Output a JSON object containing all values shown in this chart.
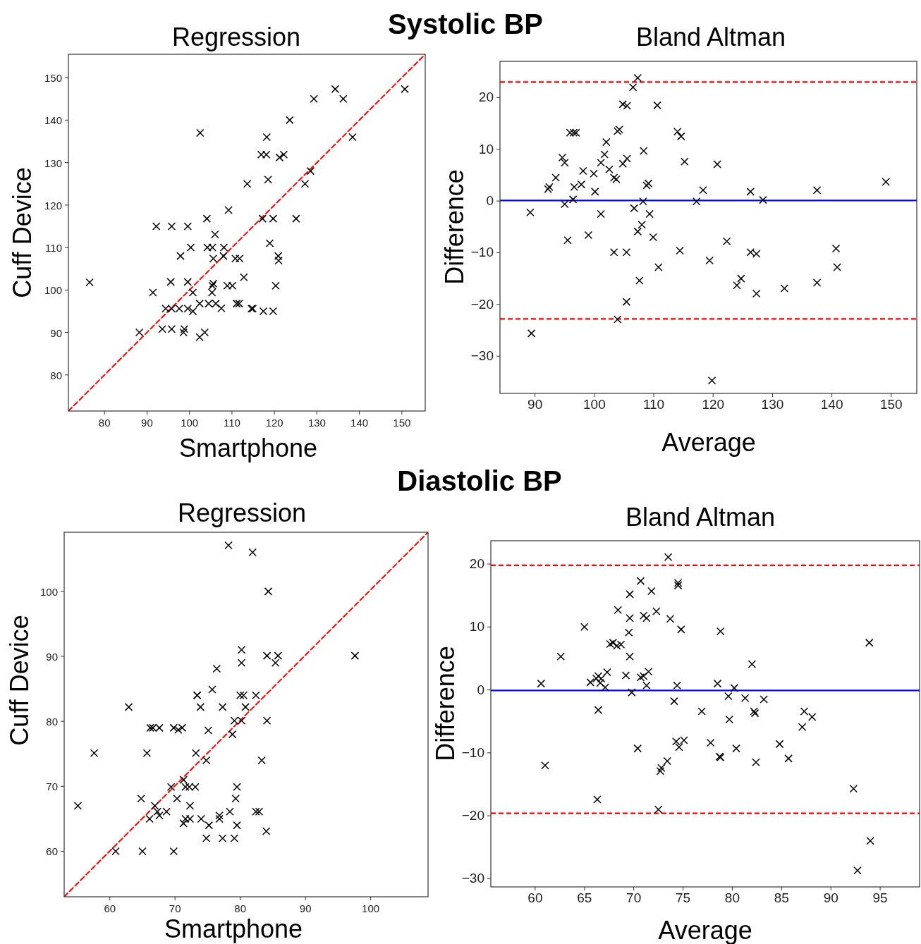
{
  "chart_data": [
    {
      "type": "scatter",
      "title": "Regression",
      "annotations": [
        "Systolic BP"
      ],
      "xlabel": "Smartphone",
      "ylabel": "Cuff Device",
      "grid": false,
      "xlim": [
        71.5,
        155.5
      ],
      "ylim": [
        71.5,
        155.5
      ],
      "xticks": [
        80,
        90,
        100,
        110,
        120,
        130,
        140,
        150
      ],
      "yticks": [
        80,
        90,
        100,
        110,
        120,
        130,
        140,
        150
      ],
      "series": [
        {
          "type": "line",
          "color": "#ff0000",
          "line_style": "dashed",
          "x": [
            71.5,
            155.5
          ],
          "values": [
            71.5,
            155.5
          ]
        },
        {
          "marker": "cross",
          "color": "#000000",
          "x": [
            76.5,
            88.2,
            91.4,
            92.2,
            95.8,
            99.6,
            95.6,
            99.6,
            94.4,
            95.8,
            97.6,
            99.6,
            100.8,
            93.6,
            95.8,
            98.8,
            98.6,
            102.4,
            103.6,
            100.8,
            100.3,
            97.9,
            102.5,
            104.1,
            104.2,
            105.4,
            108.1,
            106,
            105.6,
            108,
            109.2,
            110.8,
            111.8,
            105.6,
            105.4,
            105.3,
            102.4,
            104.5,
            106.2,
            107.5,
            108.9,
            110.1,
            112.8,
            111.1,
            111.7,
            114.6,
            114.9,
            117.4,
            119.7,
            120.3,
            118.9,
            120.9,
            121,
            113.6,
            117.2,
            119.7,
            125.1,
            116.9,
            118.1,
            118.2,
            118.5,
            121.2,
            122.2,
            123.6,
            127.2,
            128.5,
            129.3,
            134.3,
            136.2,
            138.4,
            150.7
          ],
          "values": [
            101.8,
            90,
            99.4,
            115,
            115,
            115,
            101.9,
            101.9,
            95.6,
            95.6,
            95.6,
            95.6,
            95,
            90.8,
            90.8,
            90.8,
            90,
            88.9,
            90,
            99.4,
            110,
            108,
            137,
            116.8,
            110,
            110,
            110,
            113.1,
            107.4,
            108,
            118.8,
            107.4,
            107.4,
            101.5,
            101,
            99.4,
            96.8,
            96.8,
            96.8,
            95.7,
            101,
            101,
            103,
            96.8,
            96.8,
            95.6,
            95.6,
            95,
            95,
            101,
            111,
            108,
            106.9,
            125,
            116.8,
            116.8,
            116.8,
            131.9,
            131.9,
            136,
            126,
            131.2,
            131.9,
            140,
            125,
            128,
            145,
            147.3,
            145,
            136,
            147.3
          ]
        }
      ]
    },
    {
      "type": "scatter",
      "title": "Bland Altman",
      "xlabel": "Average",
      "ylabel": "Difference",
      "grid": false,
      "xlim": [
        84.1,
        154.3
      ],
      "ylim": [
        -37.2,
        27
      ],
      "xticks": [
        90,
        100,
        110,
        120,
        130,
        140,
        150
      ],
      "yticks": [
        -30,
        -20,
        -10,
        0,
        10,
        20
      ],
      "ref_lines": [
        {
          "axis": "y",
          "value": 23,
          "color": "#ff0000",
          "line_style": "dashed"
        },
        {
          "axis": "y",
          "value": 0.1,
          "color": "#0000ff",
          "line_style": "solid"
        },
        {
          "axis": "y",
          "value": -22.8,
          "color": "#ff0000",
          "line_style": "dashed"
        }
      ],
      "series": [
        {
          "marker": "cross",
          "color": "#000000",
          "x": [
            89.2,
            89.4,
            92.2,
            92.4,
            93.5,
            94.6,
            95.0,
            95.0,
            95.5,
            95.9,
            96.5,
            96.9,
            96.6,
            96.4,
            97.8,
            98.1,
            99.0,
            99.9,
            100.1,
            101.1,
            101.1,
            101.7,
            102.0,
            102.5,
            103.3,
            103.7,
            103.3,
            103.9,
            103.9,
            104.2,
            104.8,
            105.5,
            104.8,
            105.5,
            105.4,
            105.4,
            106.5,
            107.3,
            106.7,
            107.3,
            108.0,
            107.6,
            108.3,
            108.2,
            108.8,
            109.1,
            109.3,
            109.9,
            110.6,
            110.8,
            114.0,
            114.6,
            114.4,
            115.2,
            117.2,
            118.3,
            119.4,
            119.8,
            120.7,
            122.3,
            124.0,
            124.7,
            126.3,
            126.3,
            127.3,
            127.3,
            128.4,
            132.0,
            137.5,
            137.5,
            140.7,
            140.9,
            149.1
          ],
          "values": [
            -2.2,
            -25.6,
            2.3,
            2.7,
            4.5,
            8.4,
            7.4,
            -0.6,
            -7.6,
            13.2,
            13.2,
            13.2,
            2.7,
            0.3,
            3.2,
            5.8,
            -6.6,
            5.3,
            1.8,
            -2.5,
            7.4,
            9.0,
            11.4,
            6.1,
            4.5,
            4.2,
            -9.9,
            -22.9,
            13.5,
            13.8,
            7.2,
            8.2,
            18.7,
            18.4,
            -9.9,
            -19.5,
            22.0,
            23.8,
            -1.4,
            -5.9,
            -4.6,
            -15.4,
            9.7,
            -0.1,
            3.0,
            3.4,
            -2.5,
            -7.0,
            18.5,
            -12.8,
            13.4,
            12.5,
            -9.6,
            7.6,
            -0.1,
            2.1,
            -11.5,
            -34.7,
            7.1,
            -7.8,
            -16.3,
            -15.0,
            1.8,
            -9.9,
            -10.2,
            -17.9,
            0.2,
            -16.9,
            2.1,
            -15.8,
            -9.2,
            -12.8,
            3.7
          ]
        }
      ]
    },
    {
      "type": "scatter",
      "title": "Regression",
      "annotations": [
        "Diastolic BP"
      ],
      "xlabel": "Smartphone",
      "ylabel": "Cuff Device",
      "grid": false,
      "xlim": [
        53,
        108.8
      ],
      "ylim": [
        53,
        109.1
      ],
      "xticks": [
        60,
        70,
        80,
        90,
        100
      ],
      "yticks": [
        60,
        70,
        80,
        90,
        100
      ],
      "series": [
        {
          "type": "line",
          "color": "#ff0000",
          "line_style": "dashed",
          "x": [
            53,
            108.8
          ],
          "values": [
            53,
            109.1
          ]
        },
        {
          "marker": "cross",
          "color": "#000000",
          "x": [
            55.1,
            57.6,
            60.9,
            62.9,
            64.8,
            65.0,
            65.7,
            66.1,
            66.2,
            66.6,
            67.6,
            66.9,
            67.3,
            67.6,
            68.7,
            69.4,
            69.8,
            69.8,
            70.5,
            71.1,
            70.3,
            71.3,
            71.6,
            72.2,
            73.1,
            72.3,
            71.3,
            71.6,
            72.3,
            73.2,
            73.4,
            73.4,
            73.9,
            74.0,
            74.8,
            74.8,
            75.1,
            75.2,
            75.7,
            76.4,
            76.8,
            76.8,
            77.3,
            77.3,
            78.2,
            78.4,
            78.8,
            79.1,
            79.1,
            79.3,
            79.5,
            79.5,
            80.2,
            80.2,
            80.2,
            80.0,
            80.5,
            80.8,
            81.9,
            82.4,
            82.4,
            82.9,
            83.3,
            84.0,
            84.1,
            84.1,
            84.3,
            85.4,
            85.8,
            97.6
          ],
          "values": [
            67.0,
            75.1,
            60,
            82.2,
            68.1,
            60,
            75.1,
            65.0,
            79.0,
            79.0,
            79.0,
            67.0,
            66.1,
            65.5,
            66.1,
            69.9,
            60,
            79.0,
            78.7,
            79.0,
            68.1,
            71.0,
            69.9,
            69.9,
            69.9,
            67.0,
            64.3,
            65.0,
            65.0,
            75.1,
            84.0,
            84.0,
            82.2,
            65.0,
            74.0,
            62.0,
            78.6,
            64.0,
            84.9,
            88.1,
            65.5,
            65.0,
            82.2,
            62.0,
            107.1,
            66.1,
            78.0,
            62.0,
            80.1,
            68.1,
            69.9,
            64.0,
            91.0,
            89.0,
            80.1,
            84.0,
            84.0,
            82.2,
            106.0,
            84.0,
            66.1,
            66.1,
            74.0,
            63.1,
            90.1,
            80.1,
            100.0,
            89.0,
            90.1,
            90.1
          ]
        }
      ]
    },
    {
      "type": "scatter",
      "title": "Bland Altman",
      "xlabel": "Average",
      "ylabel": "Difference",
      "grid": false,
      "xlim": [
        55.5,
        99
      ],
      "ylim": [
        -31.3,
        23.7
      ],
      "xticks": [
        60,
        65,
        70,
        75,
        80,
        85,
        90,
        95
      ],
      "yticks": [
        -30,
        -20,
        -10,
        0,
        10,
        20
      ],
      "ref_lines": [
        {
          "axis": "y",
          "value": 19.8,
          "color": "#ff0000",
          "line_style": "dashed"
        },
        {
          "axis": "y",
          "value": -0.1,
          "color": "#0000ff",
          "line_style": "solid"
        },
        {
          "axis": "y",
          "value": -19.6,
          "color": "#ff0000",
          "line_style": "dashed"
        }
      ],
      "series": [
        {
          "marker": "cross",
          "color": "#000000",
          "x": [
            60.6,
            61.0,
            62.6,
            65.0,
            65.6,
            66.2,
            66.4,
            66.6,
            66.7,
            67.3,
            67.1,
            66.4,
            66.3,
            67.6,
            67.9,
            68.3,
            68.7,
            68.4,
            69.2,
            69.6,
            69.5,
            69.6,
            69.6,
            69.8,
            70.4,
            70.7,
            70.7,
            71.0,
            71.3,
            71.0,
            71.3,
            71.5,
            71.8,
            72.3,
            72.5,
            72.7,
            72.8,
            73.4,
            73.5,
            73.7,
            74.1,
            74.4,
            74.3,
            74.6,
            75.1,
            74.5,
            74.5,
            74.8,
            76.9,
            77.8,
            78.5,
            78.8,
            78.7,
            78.8,
            79.6,
            79.7,
            80.2,
            80.4,
            81.3,
            82.0,
            82.2,
            82.3,
            82.4,
            83.2,
            84.8,
            85.7,
            87.1,
            87.3,
            88.1,
            92.3,
            93.9,
            94.0,
            92.7
          ],
          "values": [
            1.0,
            -12.0,
            5.3,
            10.0,
            1.2,
            1.8,
            2.2,
            1.1,
            1.8,
            2.8,
            0.4,
            -3.2,
            -17.4,
            7.3,
            7.5,
            7.0,
            7.2,
            12.7,
            2.3,
            5.3,
            9.1,
            11.4,
            15.2,
            -0.4,
            -9.3,
            17.3,
            2.0,
            2.2,
            0.7,
            11.8,
            11.4,
            2.9,
            15.7,
            12.5,
            -19.0,
            -12.9,
            -12.4,
            -11.3,
            21.1,
            11.3,
            -1.8,
            0.7,
            -8.2,
            -9.1,
            -8.0,
            17.0,
            16.6,
            9.6,
            -3.4,
            -8.4,
            1.0,
            9.3,
            -10.6,
            -10.7,
            -1.0,
            -4.7,
            0.3,
            -9.3,
            -1.3,
            4.1,
            -3.4,
            -3.7,
            -11.5,
            -1.5,
            -8.6,
            -10.9,
            -5.9,
            -3.4,
            -4.3,
            -15.7,
            7.5,
            -24.0,
            -28.7
          ]
        }
      ]
    }
  ]
}
